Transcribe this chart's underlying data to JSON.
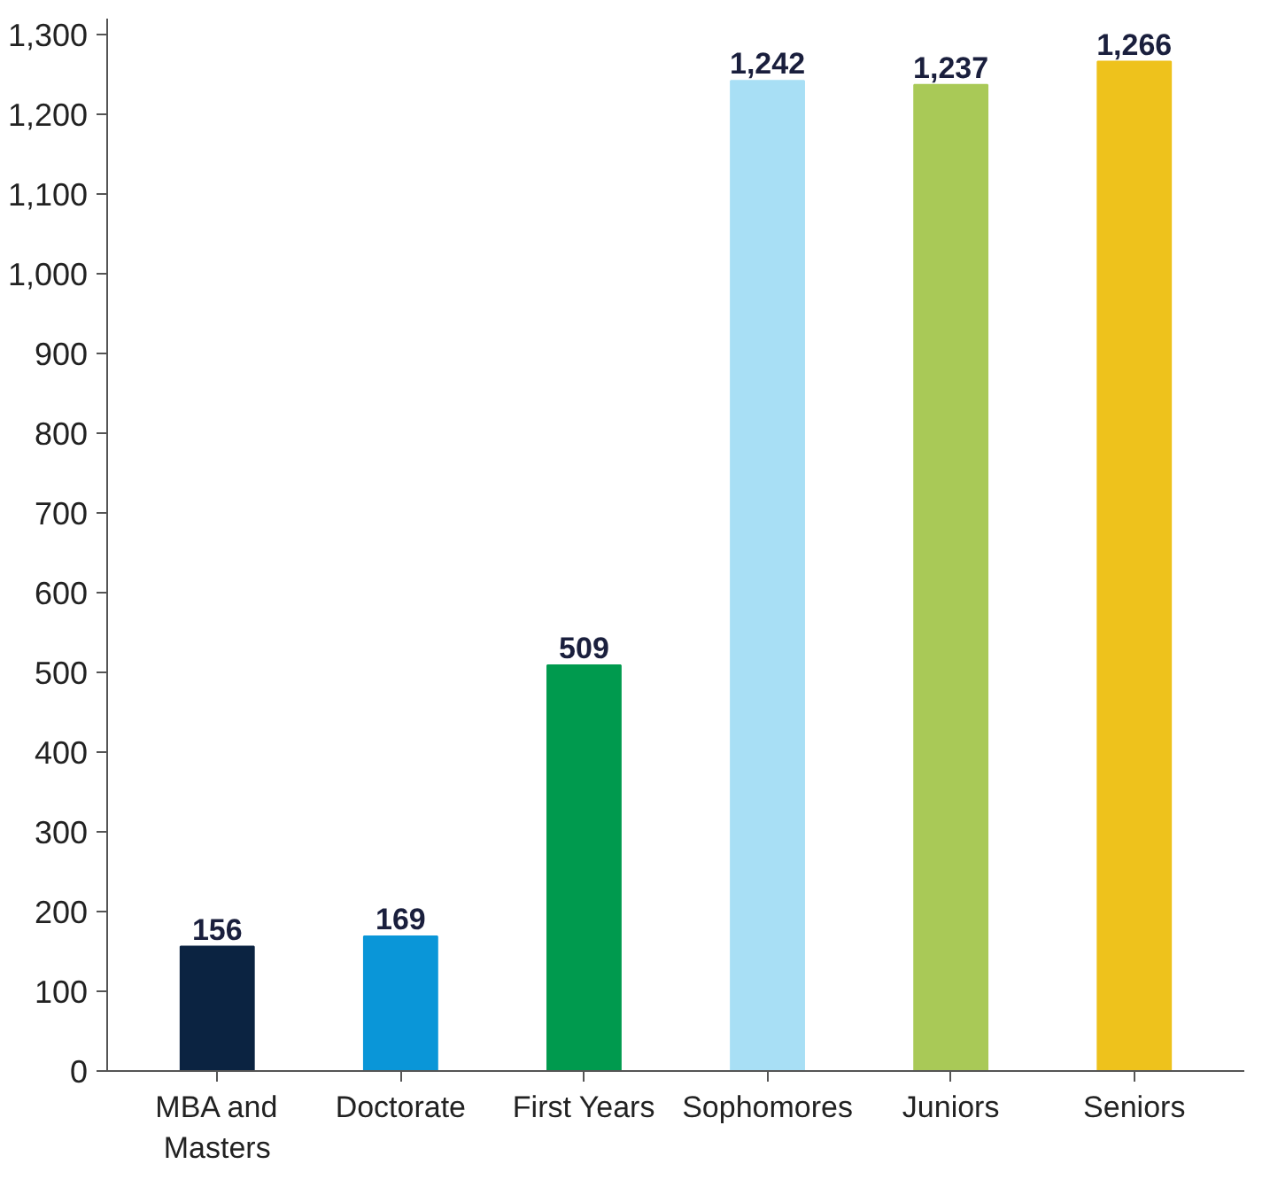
{
  "chart_data": {
    "type": "bar",
    "categories": [
      "MBA and Masters",
      "Doctorate",
      "First Years",
      "Sophomores",
      "Juniors",
      "Seniors"
    ],
    "values": [
      156,
      169,
      509,
      1242,
      1237,
      1266
    ],
    "value_labels": [
      "156",
      "169",
      "509",
      "1,242",
      "1,237",
      "1,266"
    ],
    "colors": [
      "#0b2341",
      "#0a96d8",
      "#009a4e",
      "#a8dff5",
      "#a9c957",
      "#eec21c"
    ],
    "ylim": [
      0,
      1320
    ],
    "yticks": [
      0,
      100,
      200,
      300,
      400,
      500,
      600,
      700,
      800,
      900,
      {
        "value": 1000,
        "label": "1,000"
      },
      {
        "value": 1100,
        "label": "1,100"
      },
      {
        "value": 1200,
        "label": "1,200"
      },
      {
        "value": 1300,
        "label": "1,300"
      }
    ],
    "grid": false
  }
}
